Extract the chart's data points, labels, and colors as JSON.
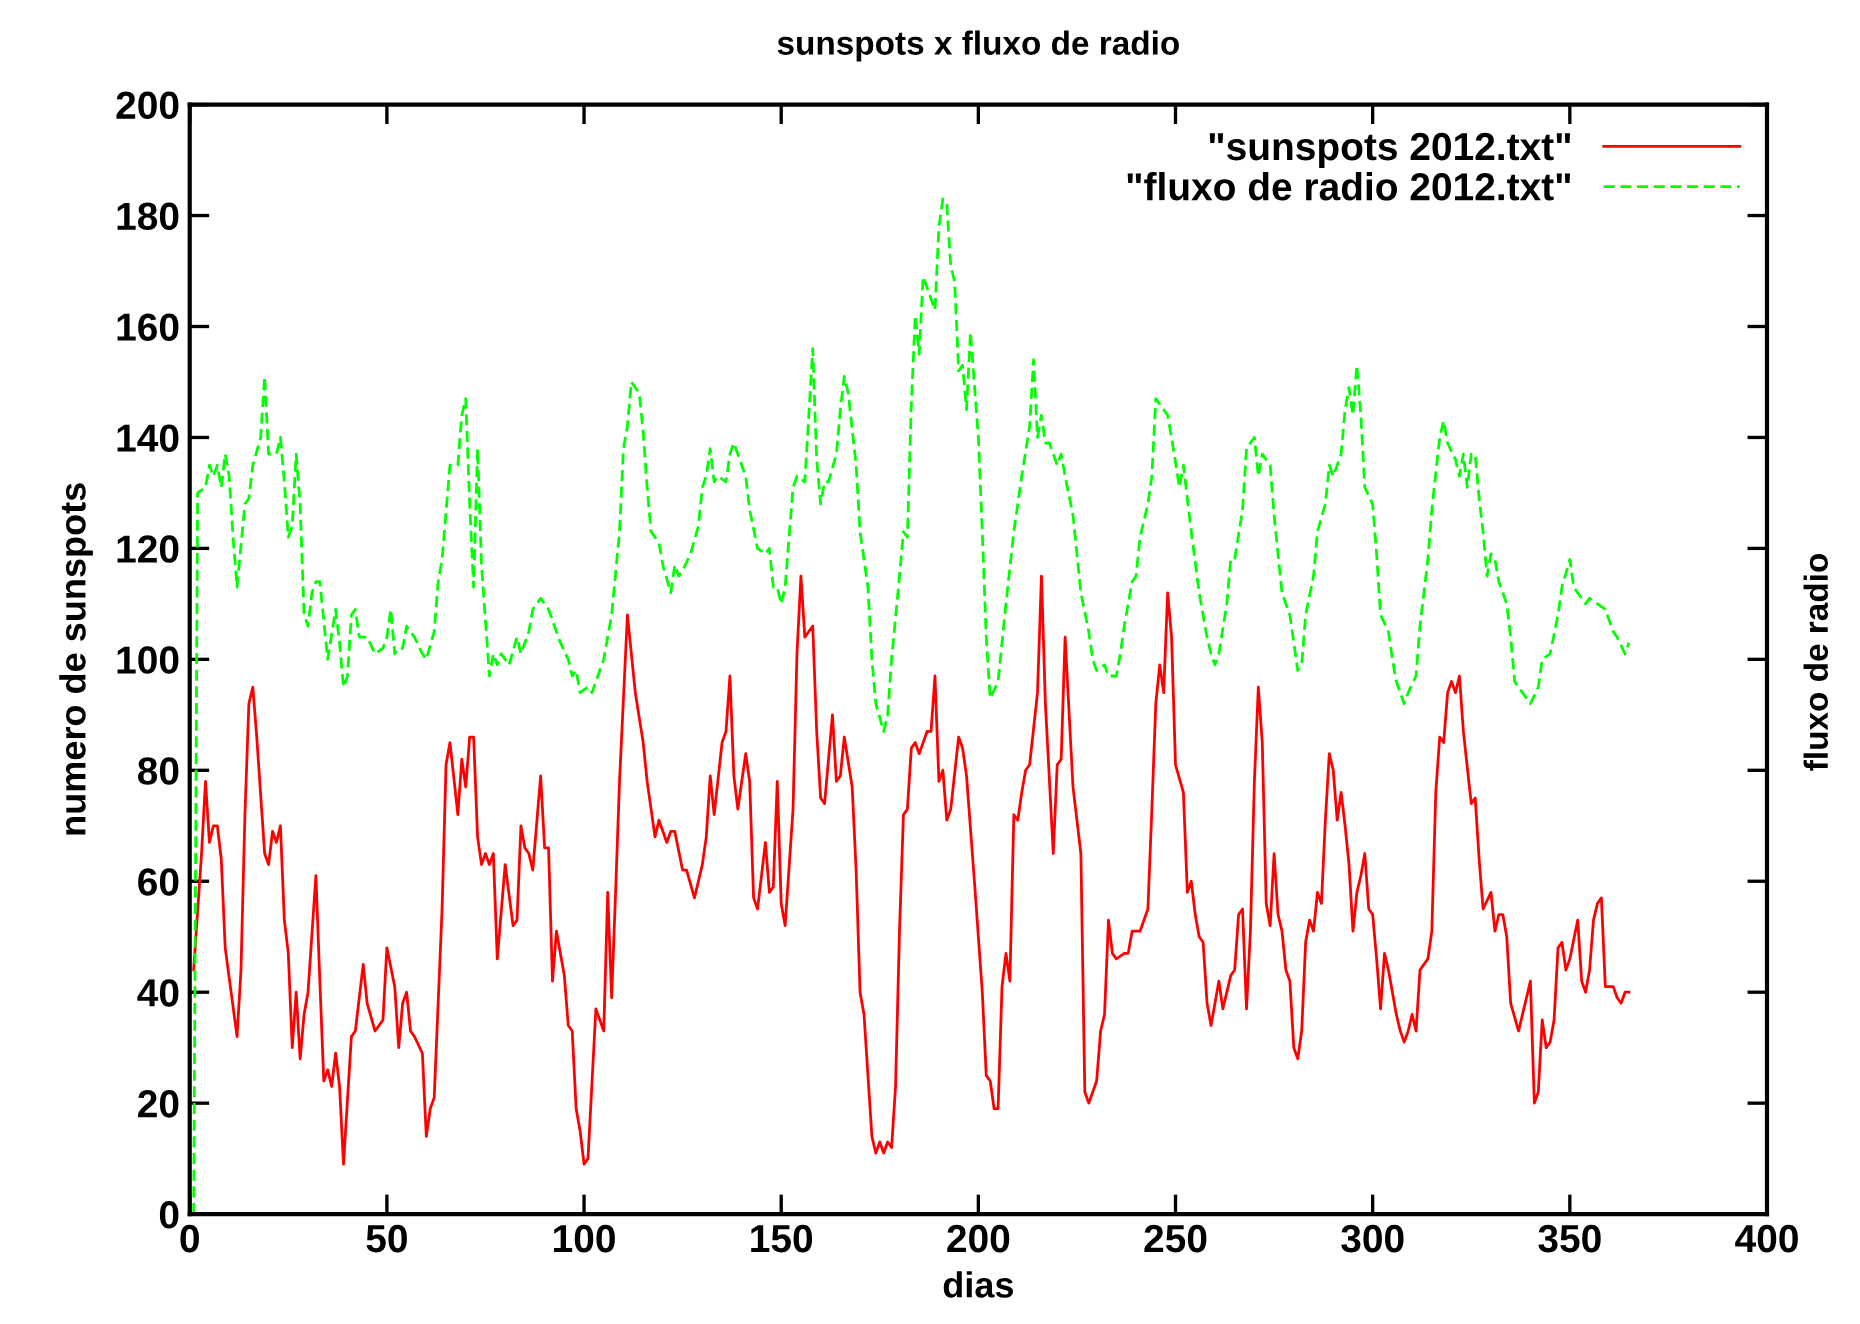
{
  "chart_data": {
    "type": "line",
    "title": "sunspots x fluxo de radio",
    "xlabel": "dias",
    "ylabel": "numero de sunspots",
    "y2label": "fluxo de radio",
    "xlim": [
      0,
      400
    ],
    "xticks": [
      0,
      50,
      100,
      150,
      200,
      250,
      300,
      350,
      400
    ],
    "ylim": [
      0,
      200
    ],
    "yticks": [
      0,
      20,
      40,
      60,
      80,
      100,
      120,
      140,
      160,
      180,
      200
    ],
    "grid": false,
    "legend": "top right",
    "marker": "none",
    "series": [
      {
        "name": "\"sunspots 2012.txt\"",
        "color": "#ff0000",
        "line_style": "solid",
        "x": [
          1,
          3,
          4,
          5,
          6,
          7,
          8,
          9,
          12,
          13,
          14,
          15,
          16,
          17,
          19,
          20,
          21,
          22,
          23,
          24,
          25,
          26,
          27,
          28,
          29,
          30,
          32,
          33,
          34,
          35,
          36,
          37,
          38,
          39,
          41,
          42,
          44,
          45,
          47,
          49,
          50,
          52,
          53,
          54,
          55,
          56,
          57,
          59,
          60,
          61,
          62,
          64,
          65,
          66,
          68,
          69,
          70,
          71,
          72,
          73,
          74,
          75,
          76,
          77,
          78,
          80,
          82,
          83,
          84,
          85,
          86,
          87,
          89,
          90,
          91,
          92,
          93,
          95,
          96,
          97,
          98,
          99,
          100,
          101,
          103,
          105,
          106,
          107,
          108,
          109,
          111,
          113,
          115,
          116,
          118,
          119,
          121,
          122,
          123,
          125,
          126,
          128,
          130,
          131,
          132,
          133,
          135,
          136,
          137,
          138,
          139,
          141,
          142,
          143,
          144,
          146,
          147,
          148,
          149,
          150,
          151,
          153,
          154,
          155,
          156,
          158,
          159,
          160,
          161,
          163,
          164,
          165,
          166,
          168,
          169,
          170,
          171,
          173,
          174,
          175,
          176,
          177,
          178,
          179,
          180,
          181,
          182,
          183,
          184,
          185,
          187,
          188,
          189,
          190,
          191,
          192,
          193,
          195,
          196,
          197,
          199,
          201,
          202,
          203,
          204,
          205,
          206,
          207,
          208,
          209,
          210,
          211,
          212,
          213,
          215,
          216,
          217,
          219,
          220,
          221,
          222,
          224,
          226,
          227,
          228,
          230,
          231,
          232,
          233,
          234,
          235,
          237,
          238,
          239,
          240,
          241,
          243,
          244,
          245,
          246,
          247,
          248,
          249,
          250,
          252,
          253,
          254,
          255,
          256,
          257,
          258,
          259,
          261,
          262,
          264,
          265,
          266,
          267,
          268,
          269,
          270,
          271,
          272,
          273,
          274,
          275,
          276,
          277,
          278,
          279,
          280,
          281,
          282,
          283,
          284,
          285,
          286,
          287,
          288,
          289,
          290,
          291,
          292,
          293,
          294,
          295,
          296,
          297,
          298,
          299,
          300,
          301,
          302,
          303,
          304,
          306,
          307,
          308,
          309,
          310,
          311,
          312,
          314,
          315,
          316,
          317,
          318,
          319,
          320,
          321,
          322,
          323,
          325,
          326,
          327,
          328,
          330,
          331,
          332,
          333,
          334,
          335,
          337,
          338,
          340,
          341,
          342,
          343,
          344,
          345,
          346,
          347,
          348,
          349,
          350,
          352,
          353,
          354,
          355,
          356,
          357,
          358,
          359,
          361,
          362,
          363,
          364,
          365
        ],
        "values": [
          44,
          65,
          78,
          67,
          70,
          70,
          64,
          48,
          32,
          44,
          72,
          92,
          95,
          86,
          65,
          63,
          69,
          67,
          70,
          53,
          47,
          30,
          40,
          28,
          36,
          40,
          61,
          42,
          24,
          26,
          23,
          29,
          23,
          9,
          32,
          33,
          45,
          38,
          33,
          35,
          48,
          41,
          30,
          38,
          40,
          33,
          32,
          29,
          14,
          19,
          21,
          55,
          81,
          85,
          72,
          82,
          77,
          86,
          86,
          68,
          63,
          65,
          63,
          65,
          46,
          63,
          52,
          53,
          70,
          66,
          65,
          62,
          79,
          66,
          66,
          42,
          51,
          43,
          34,
          33,
          19,
          15,
          9,
          10,
          37,
          33,
          58,
          39,
          58,
          78,
          108,
          94,
          85,
          78,
          68,
          71,
          67,
          69,
          69,
          62,
          62,
          57,
          63,
          68,
          79,
          72,
          85,
          87,
          97,
          79,
          73,
          83,
          78,
          57,
          55,
          67,
          58,
          59,
          78,
          56,
          52,
          73,
          101,
          115,
          104,
          106,
          87,
          75,
          74,
          90,
          78,
          79,
          86,
          77,
          62,
          40,
          36,
          14,
          11,
          13,
          11,
          13,
          12,
          23,
          51,
          72,
          73,
          84,
          85,
          83,
          87,
          87,
          97,
          78,
          80,
          71,
          73,
          86,
          84,
          79,
          60,
          40,
          25,
          24,
          19,
          19,
          41,
          47,
          42,
          72,
          71,
          76,
          80,
          81,
          94,
          115,
          92,
          65,
          81,
          82,
          104,
          77,
          65,
          22,
          20,
          24,
          33,
          36,
          53,
          47,
          46,
          47,
          47,
          51,
          51,
          51,
          55,
          73,
          92,
          99,
          94,
          112,
          104,
          81,
          76,
          58,
          60,
          54,
          50,
          49,
          38,
          34,
          42,
          37,
          43,
          44,
          54,
          55,
          37,
          51,
          78,
          95,
          85,
          56,
          52,
          65,
          54,
          51,
          44,
          42,
          30,
          28,
          33,
          49,
          53,
          51,
          58,
          56,
          71,
          83,
          80,
          71,
          76,
          70,
          63,
          51,
          58,
          61,
          65,
          55,
          54,
          46,
          37,
          47,
          44,
          36,
          33,
          31,
          33,
          36,
          33,
          44,
          46,
          51,
          76,
          86,
          85,
          94,
          96,
          94,
          97,
          87,
          74,
          75,
          64,
          55,
          58,
          51,
          54,
          54,
          50,
          38,
          33,
          36,
          42,
          20,
          22,
          35,
          30,
          31,
          35,
          48,
          49,
          44,
          46,
          53,
          42,
          40,
          44,
          53,
          56,
          57,
          41,
          41,
          39,
          38,
          40,
          40
        ]
      },
      {
        "name": "\"fluxo de radio 2012.txt\"",
        "color": "#00ff00",
        "line_style": "dashed",
        "x": [
          1,
          2,
          4,
          5,
          6,
          7,
          8,
          9,
          10,
          11,
          12,
          14,
          15,
          16,
          18,
          19,
          20,
          22,
          23,
          24,
          25,
          26,
          27,
          28,
          29,
          30,
          31,
          32,
          33,
          34,
          35,
          37,
          38,
          39,
          40,
          41,
          42,
          43,
          45,
          47,
          49,
          50,
          51,
          52,
          53,
          54,
          55,
          57,
          59,
          60,
          62,
          63,
          64,
          66,
          67,
          68,
          69,
          70,
          71,
          72,
          73,
          74,
          76,
          77,
          78,
          79,
          81,
          83,
          84,
          86,
          87,
          89,
          91,
          93,
          94,
          96,
          97,
          98,
          99,
          101,
          102,
          103,
          105,
          107,
          109,
          110,
          111,
          112,
          114,
          115,
          116,
          117,
          118,
          119,
          120,
          122,
          123,
          124,
          125,
          127,
          129,
          130,
          131,
          132,
          133,
          134,
          136,
          137,
          138,
          140,
          141,
          142,
          144,
          146,
          147,
          148,
          149,
          150,
          151,
          153,
          154,
          156,
          157,
          158,
          159,
          160,
          161,
          162,
          164,
          165,
          166,
          167,
          169,
          170,
          172,
          173,
          174,
          176,
          177,
          178,
          180,
          181,
          182,
          183,
          184,
          185,
          186,
          188,
          189,
          190,
          191,
          192,
          193,
          194,
          195,
          196,
          197,
          198,
          200,
          201,
          202,
          203,
          205,
          206,
          207,
          209,
          211,
          213,
          214,
          215,
          216,
          217,
          218,
          220,
          221,
          222,
          224,
          226,
          228,
          229,
          230,
          232,
          233,
          235,
          236,
          237,
          239,
          240,
          241,
          243,
          244,
          245,
          247,
          248,
          249,
          251,
          252,
          253,
          254,
          256,
          258,
          259,
          260,
          261,
          263,
          264,
          265,
          267,
          268,
          270,
          271,
          272,
          274,
          275,
          277,
          279,
          281,
          282,
          283,
          285,
          286,
          288,
          289,
          290,
          292,
          293,
          294,
          295,
          296,
          297,
          298,
          300,
          301,
          302,
          304,
          305,
          306,
          308,
          309,
          311,
          312,
          314,
          315,
          317,
          318,
          319,
          321,
          322,
          323,
          324,
          325,
          326,
          327,
          328,
          329,
          330,
          331,
          332,
          334,
          335,
          336,
          338,
          340,
          342,
          343,
          345,
          347,
          348,
          350,
          351,
          352,
          354,
          355,
          357,
          359,
          361,
          362,
          364,
          365
        ],
        "values": [
          0,
          130,
          131,
          135,
          133,
          135,
          131,
          137,
          133,
          122,
          113,
          128,
          129,
          135,
          140,
          151,
          137,
          137,
          140,
          132,
          122,
          124,
          137,
          128,
          108,
          106,
          112,
          114,
          114,
          107,
          100,
          109,
          103,
          95,
          97,
          108,
          109,
          104,
          104,
          101,
          102,
          104,
          109,
          101,
          102,
          102,
          106,
          104,
          101,
          100,
          105,
          114,
          118,
          135,
          135,
          135,
          144,
          147,
          128,
          113,
          138,
          117,
          97,
          101,
          99,
          101,
          99,
          104,
          101,
          105,
          109,
          111,
          109,
          105,
          103,
          100,
          97,
          98,
          94,
          95,
          94,
          96,
          100,
          108,
          123,
          138,
          142,
          150,
          148,
          141,
          131,
          123,
          122,
          121,
          117,
          112,
          117,
          115,
          116,
          119,
          124,
          131,
          133,
          138,
          132,
          133,
          132,
          137,
          139,
          135,
          133,
          127,
          120,
          119,
          120,
          113,
          113,
          110,
          113,
          131,
          133,
          132,
          144,
          156,
          136,
          128,
          132,
          132,
          137,
          145,
          151,
          148,
          135,
          123,
          113,
          100,
          92,
          87,
          90,
          100,
          115,
          123,
          122,
          146,
          162,
          155,
          169,
          165,
          163,
          178,
          183,
          182,
          171,
          168,
          152,
          153,
          145,
          159,
          140,
          123,
          104,
          93,
          96,
          103,
          110,
          123,
          133,
          142,
          154,
          140,
          144,
          139,
          139,
          135,
          137,
          133,
          126,
          112,
          105,
          100,
          98,
          99,
          97,
          97,
          101,
          106,
          114,
          115,
          122,
          128,
          133,
          147,
          145,
          144,
          140,
          131,
          135,
          129,
          123,
          112,
          104,
          101,
          99,
          101,
          110,
          118,
          118,
          127,
          138,
          140,
          133,
          137,
          135,
          126,
          112,
          108,
          98,
          99,
          108,
          115,
          123,
          128,
          135,
          133,
          137,
          145,
          149,
          144,
          153,
          144,
          131,
          128,
          119,
          108,
          105,
          100,
          96,
          92,
          94,
          97,
          106,
          118,
          127,
          140,
          143,
          139,
          136,
          133,
          137,
          131,
          137,
          137,
          129,
          123,
          115,
          119,
          118,
          114,
          110,
          104,
          96,
          94,
          92,
          95,
          100,
          101,
          108,
          113,
          118,
          113,
          112,
          110,
          111,
          110,
          109,
          105,
          104,
          101,
          103
        ]
      }
    ]
  }
}
